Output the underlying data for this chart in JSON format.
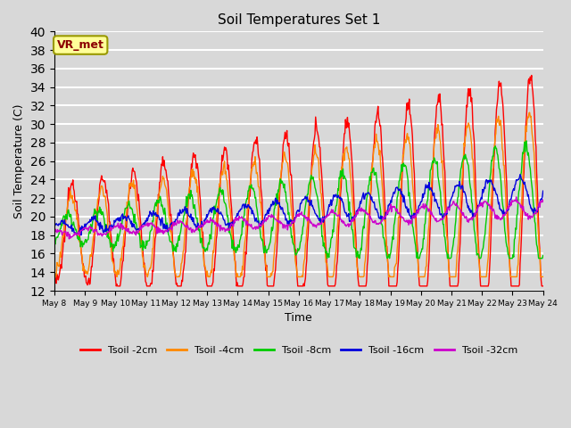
{
  "title": "Soil Temperatures Set 1",
  "xlabel": "Time",
  "ylabel": "Soil Temperature (C)",
  "ylim": [
    12,
    40
  ],
  "yticks": [
    12,
    14,
    16,
    18,
    20,
    22,
    24,
    26,
    28,
    30,
    32,
    34,
    36,
    38,
    40
  ],
  "bg_color": "#d8d8d8",
  "plot_bg_color": "#d8d8d8",
  "grid_color": "white",
  "series": [
    {
      "label": "Tsoil -2cm",
      "color": "#ff0000",
      "lw": 1.0
    },
    {
      "label": "Tsoil -4cm",
      "color": "#ff8800",
      "lw": 1.0
    },
    {
      "label": "Tsoil -8cm",
      "color": "#00cc00",
      "lw": 1.0
    },
    {
      "label": "Tsoil -16cm",
      "color": "#0000dd",
      "lw": 1.0
    },
    {
      "label": "Tsoil -32cm",
      "color": "#cc00cc",
      "lw": 1.0
    }
  ],
  "annotation_text": "VR_met",
  "annotation_color": "#8b0000",
  "annotation_bg": "#ffff99",
  "annotation_border": "#999900",
  "n_days": 16,
  "start_day": 8,
  "points_per_day": 48
}
